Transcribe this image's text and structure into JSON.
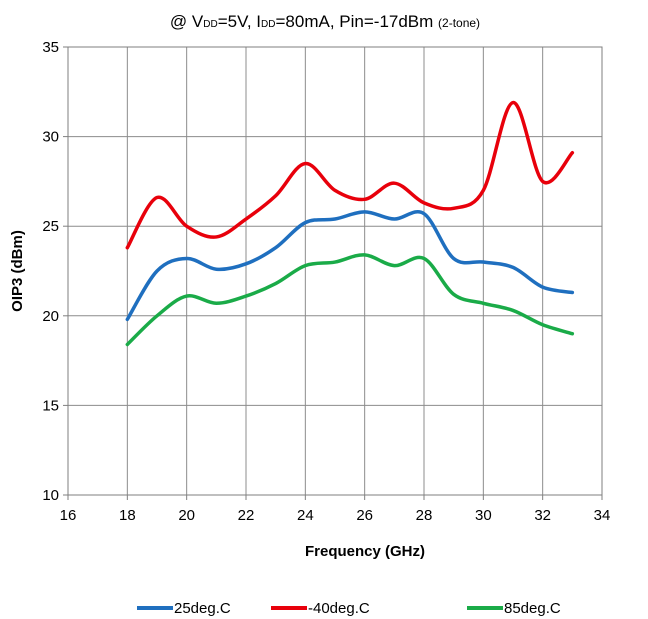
{
  "chart_data": {
    "type": "line",
    "title_parts": {
      "p1": "@ V",
      "vdd_sub": "DD",
      "p2": "=5V, I",
      "idd_sub": "DD",
      "p3": "=80mA, Pin=-17dBm ",
      "tone": "(2-tone)"
    },
    "xlabel": "Frequency (GHz)",
    "ylabel": "OIP3 (dBm)",
    "xlim": [
      16,
      34
    ],
    "ylim": [
      10,
      35
    ],
    "xticks": [
      16,
      18,
      20,
      22,
      24,
      26,
      28,
      30,
      32,
      34
    ],
    "yticks": [
      10,
      15,
      20,
      25,
      30,
      35
    ],
    "grid": true,
    "legend_position": "bottom",
    "series": [
      {
        "name": "25deg.C",
        "color": "#1f6fbf",
        "x": [
          18,
          19,
          20,
          21,
          22,
          23,
          24,
          25,
          26,
          27,
          28,
          29,
          30,
          31,
          32,
          33
        ],
        "y": [
          19.8,
          22.5,
          23.2,
          22.6,
          22.9,
          23.8,
          25.2,
          25.4,
          25.8,
          25.4,
          25.7,
          23.2,
          23.0,
          22.7,
          21.6,
          21.3
        ]
      },
      {
        "name": "-40deg.C",
        "color": "#e8000b",
        "x": [
          18,
          19,
          20,
          21,
          22,
          23,
          24,
          25,
          26,
          27,
          28,
          29,
          30,
          31,
          32,
          33
        ],
        "y": [
          23.8,
          26.6,
          25.0,
          24.4,
          25.4,
          26.7,
          28.5,
          27.0,
          26.5,
          27.4,
          26.3,
          26.0,
          27.0,
          31.9,
          27.5,
          29.1
        ]
      },
      {
        "name": "85deg.C",
        "color": "#1aab48",
        "x": [
          18,
          19,
          20,
          21,
          22,
          23,
          24,
          25,
          26,
          27,
          28,
          29,
          30,
          31,
          32,
          33
        ],
        "y": [
          18.4,
          20.0,
          21.1,
          20.7,
          21.1,
          21.8,
          22.8,
          23.0,
          23.4,
          22.8,
          23.2,
          21.2,
          20.7,
          20.3,
          19.5,
          19.0
        ]
      }
    ]
  }
}
